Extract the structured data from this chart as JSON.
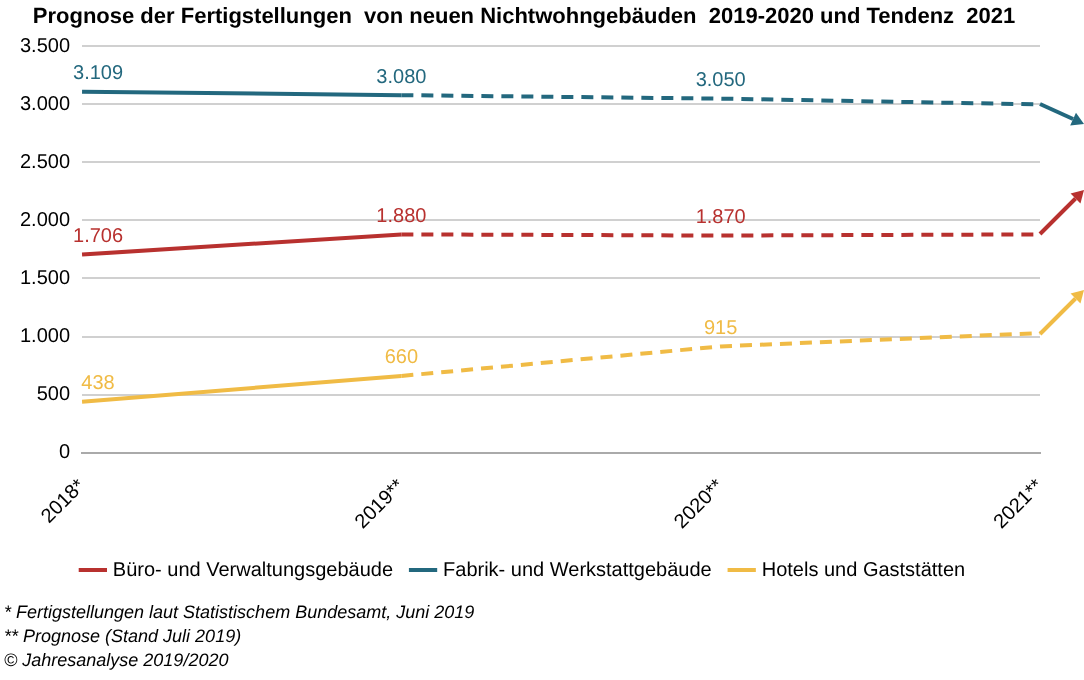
{
  "chart_data": {
    "type": "line",
    "title": "Prognose der Fertigstellungen  von neuen Nichtwohngebäuden  2019-2020 und Tendenz  2021",
    "categories": [
      "2018*",
      "2019**",
      "2020**",
      "2021**"
    ],
    "series": [
      {
        "name": "Büro- und Verwaltungsgebäude",
        "color": "#b8312f",
        "values": [
          1706,
          1880,
          null,
          null
        ],
        "value_labels": [
          "1.706",
          "1.880",
          null,
          null
        ]
      },
      {
        "name": "Fabrik- und Werkstattgebäude",
        "color": "#23687e",
        "values": [
          3109,
          3080,
          null,
          null
        ],
        "value_labels": [
          "3.109",
          "3.080",
          null,
          null
        ]
      },
      {
        "name": "Hotels und Gaststätten",
        "color": "#f0bb45",
        "values": [
          438,
          660,
          null,
          null
        ],
        "value_labels": [
          "438",
          "660",
          null,
          null
        ]
      },
      {
        "color": "#b8312f",
        "values": [
          null,
          1880,
          1870,
          1880
        ],
        "line_style": "dashed",
        "value_labels": [
          null,
          null,
          "1.870",
          null
        ]
      },
      {
        "color": "#23687e",
        "values": [
          null,
          3080,
          3050,
          3000
        ],
        "line_style": "dashed",
        "value_labels": [
          null,
          null,
          "3.050",
          null
        ]
      },
      {
        "color": "#f0bb45",
        "values": [
          null,
          660,
          915,
          1030
        ],
        "line_style": "dashed",
        "value_labels": [
          null,
          null,
          "915",
          null
        ]
      }
    ],
    "ylim": [
      0,
      3500
    ],
    "yticks": [
      {
        "value": 0,
        "label": "0"
      },
      {
        "value": 500,
        "label": "500"
      },
      {
        "value": 1000,
        "label": "1.000"
      },
      {
        "value": 1500,
        "label": "1.500"
      },
      {
        "value": 2000,
        "label": "2.000"
      },
      {
        "value": 2500,
        "label": "2.500"
      },
      {
        "value": 3000,
        "label": "3.000"
      },
      {
        "value": 3500,
        "label": "3.500"
      }
    ],
    "grid": "y",
    "legend": "bottom",
    "marker": "none",
    "line_style": "solid",
    "annotations": [
      "* Fertigstellungen laut Statistischem Bundesamt, Juni 2019",
      "** Prognose (Stand Juli 2019)",
      "© Jahresanalyse 2019/2020"
    ]
  }
}
